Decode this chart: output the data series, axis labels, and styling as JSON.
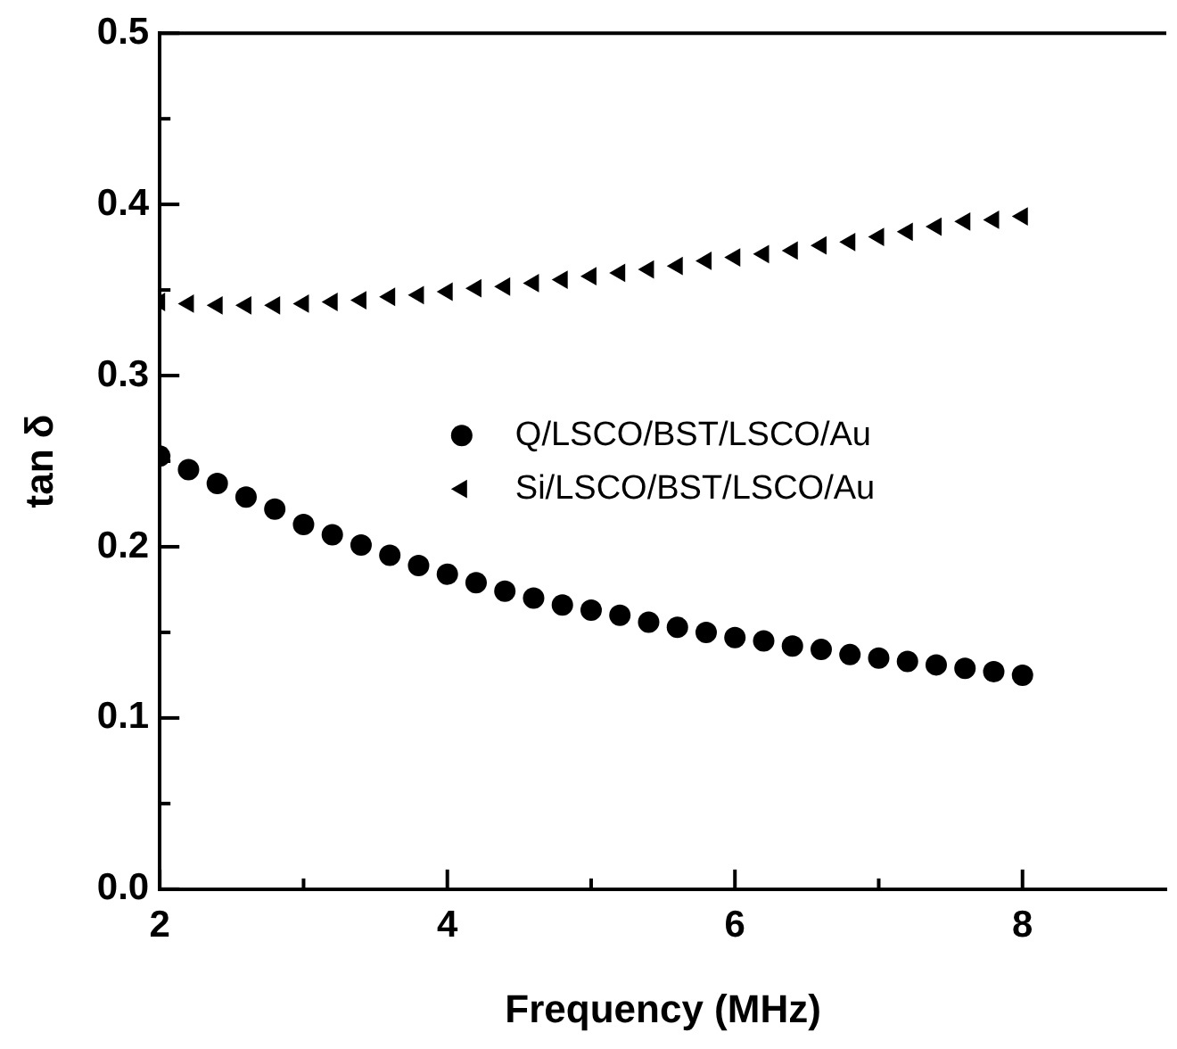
{
  "chart_data": {
    "type": "scatter",
    "xlabel": "Frequency (MHz)",
    "ylabel": "tan δ",
    "xlim": [
      2,
      9
    ],
    "xticks": [
      2,
      {
        "value": 3,
        "label": null
      },
      4,
      {
        "value": 5,
        "label": null
      },
      6,
      {
        "value": 7,
        "label": null
      },
      8
    ],
    "ylim": [
      0,
      0.5
    ],
    "yticks": [
      {
        "value": 0,
        "label": "0.0"
      },
      {
        "value": 0.05,
        "label": null
      },
      0.1,
      {
        "value": 0.15,
        "label": null
      },
      0.2,
      {
        "value": 0.25,
        "label": null
      },
      0.3,
      {
        "value": 0.35,
        "label": null
      },
      0.4,
      {
        "value": 0.45,
        "label": null
      },
      0.5
    ],
    "grid": false,
    "legend": "right",
    "x": [
      2.0,
      2.2,
      2.4,
      2.6,
      2.8,
      3.0,
      3.2,
      3.4,
      3.6,
      3.8,
      4.0,
      4.2,
      4.4,
      4.6,
      4.8,
      5.0,
      5.2,
      5.4,
      5.6,
      5.8,
      6.0,
      6.2,
      6.4,
      6.6,
      6.8,
      7.0,
      7.2,
      7.4,
      7.6,
      7.8,
      8.0
    ],
    "series": [
      {
        "name": "Q/LSCO/BST/LSCO/Au",
        "color": "#000000",
        "marker": "circle",
        "values": [
          0.253,
          0.245,
          0.237,
          0.229,
          0.222,
          0.213,
          0.207,
          0.201,
          0.195,
          0.189,
          0.184,
          0.179,
          0.174,
          0.17,
          0.166,
          0.163,
          0.16,
          0.156,
          0.153,
          0.15,
          0.147,
          0.145,
          0.142,
          0.14,
          0.137,
          0.135,
          0.133,
          0.131,
          0.129,
          0.127,
          0.125
        ]
      },
      {
        "name": "Si/LSCO/BST/LSCO/Au",
        "color": "#000000",
        "marker": "triangle-left",
        "values": [
          0.343,
          0.342,
          0.341,
          0.341,
          0.341,
          0.342,
          0.343,
          0.344,
          0.346,
          0.347,
          0.349,
          0.351,
          0.352,
          0.354,
          0.356,
          0.358,
          0.36,
          0.362,
          0.364,
          0.367,
          0.369,
          0.371,
          0.373,
          0.376,
          0.378,
          0.381,
          0.384,
          0.387,
          0.39,
          0.391,
          0.393
        ]
      }
    ]
  }
}
